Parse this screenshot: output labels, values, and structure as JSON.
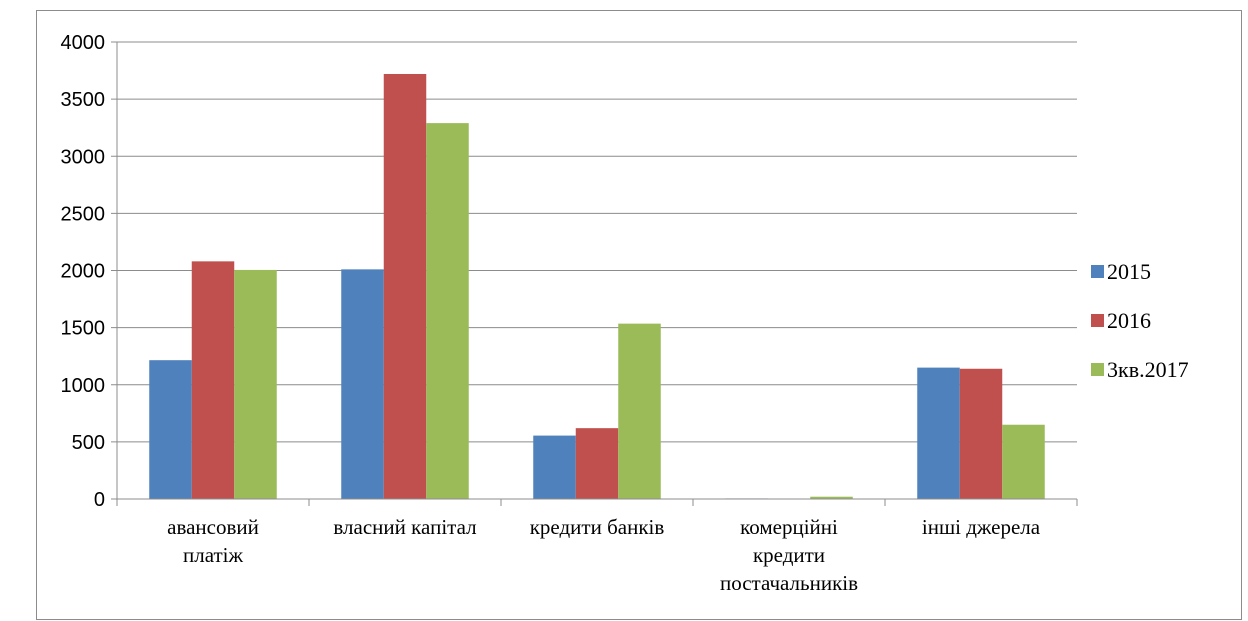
{
  "chart_data": {
    "type": "bar",
    "categories": [
      [
        "авансовий",
        "платіж"
      ],
      [
        "власний капітал"
      ],
      [
        "кредити банків"
      ],
      [
        "комерційні",
        "кредити",
        "постачальників"
      ],
      [
        "інші джерела"
      ]
    ],
    "series": [
      {
        "name": "2015",
        "color": "#4f81bd",
        "values": [
          1215,
          2010,
          555,
          5,
          1150
        ]
      },
      {
        "name": "2016",
        "color": "#c0504d",
        "values": [
          2080,
          3720,
          620,
          3,
          1140
        ]
      },
      {
        "name": "3кв.2017",
        "color": "#9bbb59",
        "values": [
          2005,
          3290,
          1535,
          20,
          650
        ]
      }
    ],
    "ylim": [
      0,
      4000
    ],
    "yticks": [
      "0",
      "500",
      "1000",
      "1500",
      "2000",
      "2500",
      "3000",
      "3500",
      "4000"
    ],
    "title": "",
    "xlabel": "",
    "ylabel": "",
    "grid": true,
    "legend_position": "right"
  }
}
